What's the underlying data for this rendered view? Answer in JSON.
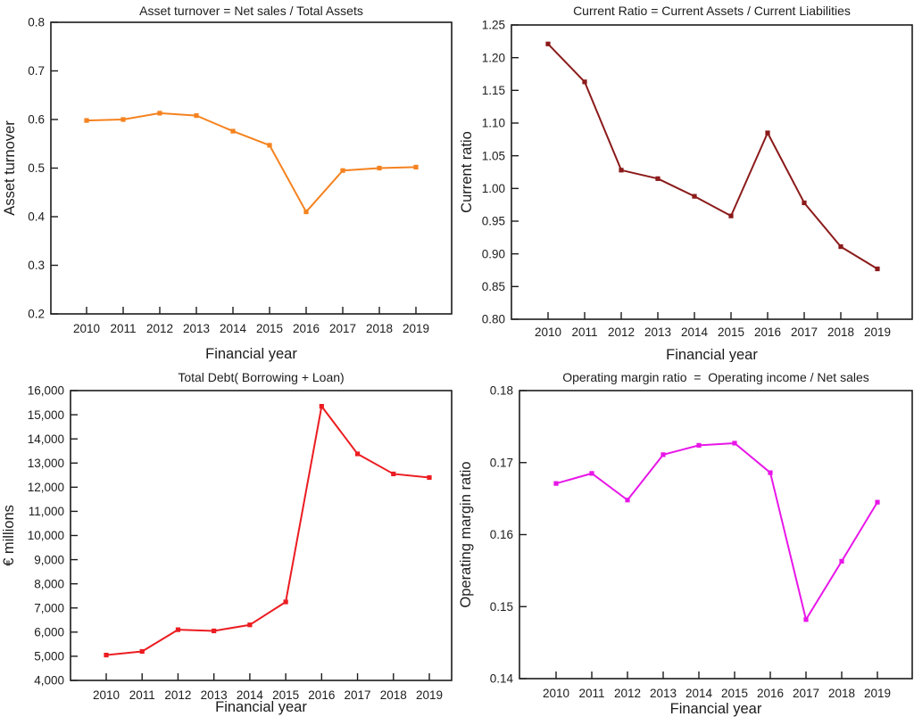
{
  "page": {
    "background": "#ffffff",
    "text_color": "#1c1c1c",
    "axis_color": "#1c1c1c"
  },
  "chart_data": [
    {
      "id": "asset-turnover",
      "type": "line",
      "title": "Asset turnover = Net sales / Total Assets",
      "xlabel": "Financial year",
      "ylabel": "Asset turnover",
      "categories": [
        "2010",
        "2011",
        "2012",
        "2013",
        "2014",
        "2015",
        "2016",
        "2017",
        "2018",
        "2019"
      ],
      "values": [
        0.598,
        0.6,
        0.613,
        0.608,
        0.576,
        0.547,
        0.41,
        0.495,
        0.5,
        0.502
      ],
      "ylim": [
        0.2,
        0.8
      ],
      "ytick_step": 0.1,
      "ytick_decimals": 1,
      "thousands_separator": false,
      "grid": false,
      "legend": "none",
      "marker": "square",
      "color": "#F5821F"
    },
    {
      "id": "current-ratio",
      "type": "line",
      "title": "Current Ratio = Current Assets / Current Liabilities",
      "xlabel": "Financial year",
      "ylabel": "Current ratio",
      "categories": [
        "2010",
        "2011",
        "2012",
        "2013",
        "2014",
        "2015",
        "2016",
        "2017",
        "2018",
        "2019"
      ],
      "values": [
        1.221,
        1.163,
        1.028,
        1.015,
        0.988,
        0.958,
        1.085,
        0.978,
        0.911,
        0.877
      ],
      "ylim": [
        0.8,
        1.25
      ],
      "ytick_step": 0.05,
      "ytick_decimals": 2,
      "thousands_separator": false,
      "grid": false,
      "legend": "none",
      "marker": "square",
      "color": "#8B1A1A"
    },
    {
      "id": "total-debt",
      "type": "line",
      "title": "Total Debt( Borrowing + Loan)",
      "xlabel": "Financial year",
      "ylabel": "€ millions",
      "categories": [
        "2010",
        "2011",
        "2012",
        "2013",
        "2014",
        "2015",
        "2016",
        "2017",
        "2018",
        "2019"
      ],
      "values": [
        5050,
        5200,
        6100,
        6050,
        6300,
        7250,
        15350,
        13380,
        12550,
        12400
      ],
      "ylim": [
        4000,
        16000
      ],
      "ytick_step": 1000,
      "ytick_decimals": 0,
      "thousands_separator": true,
      "grid": false,
      "legend": "none",
      "marker": "square",
      "color": "#EB1C21"
    },
    {
      "id": "operating-margin-ratio",
      "type": "line",
      "title": "Operating margin ratio  =  Operating income / Net sales",
      "xlabel": "Financial year",
      "ylabel": "Operating margin ratio",
      "categories": [
        "2010",
        "2011",
        "2012",
        "2013",
        "2014",
        "2015",
        "2016",
        "2017",
        "2018",
        "2019"
      ],
      "values": [
        0.1671,
        0.1685,
        0.1648,
        0.1711,
        0.1724,
        0.1727,
        0.1686,
        0.1482,
        0.1563,
        0.1645
      ],
      "ylim": [
        0.14,
        0.18
      ],
      "ytick_step": 0.01,
      "ytick_decimals": 2,
      "thousands_separator": false,
      "grid": false,
      "legend": "none",
      "marker": "square",
      "color": "#E816E8"
    }
  ]
}
